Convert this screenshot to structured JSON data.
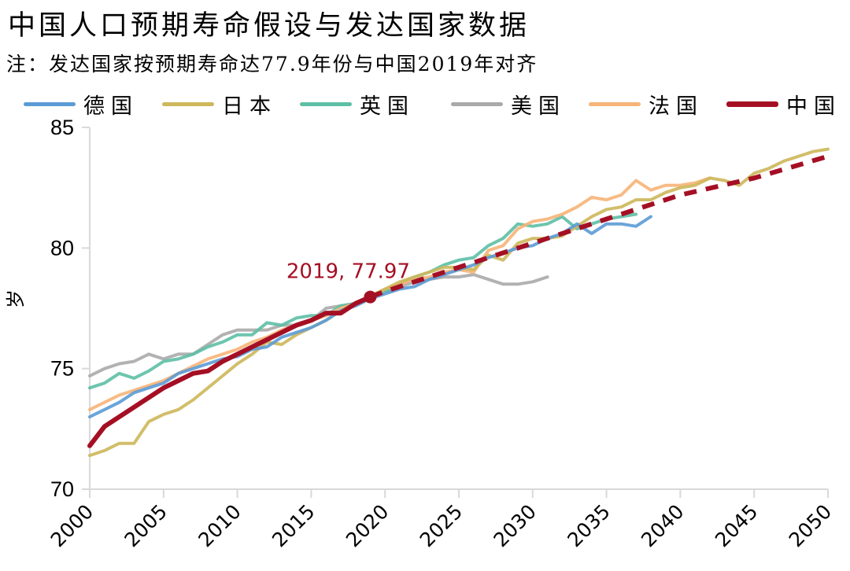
{
  "chart_data": {
    "type": "line",
    "title": "中国人口预期寿命假设与发达国家数据",
    "subtitle": "注：发达国家按预期寿命达77.9年份与中国2019年对齐",
    "xlabel": "",
    "ylabel": "岁",
    "xlim": [
      2000,
      2050
    ],
    "ylim": [
      70,
      85
    ],
    "xticks": [
      "2000",
      "2005",
      "2010",
      "2015",
      "2020",
      "2025",
      "2030",
      "2035",
      "2040",
      "2045",
      "2050"
    ],
    "yticks": [
      "70",
      "75",
      "80",
      "85"
    ],
    "grid": false,
    "legend_position": "top",
    "annotation": {
      "label": "2019, 77.97",
      "x": 2019,
      "y": 77.97
    },
    "series": [
      {
        "name": "德国",
        "color": "#5B9BD5",
        "style": "solid",
        "x": [
          2000,
          2001,
          2002,
          2003,
          2004,
          2005,
          2006,
          2007,
          2008,
          2009,
          2010,
          2011,
          2012,
          2013,
          2014,
          2015,
          2016,
          2017,
          2018,
          2019,
          2020,
          2021,
          2022,
          2023,
          2024,
          2025,
          2026,
          2027,
          2028,
          2029,
          2030,
          2031,
          2032,
          2033,
          2034,
          2035,
          2036,
          2037,
          2038
        ],
        "y": [
          73.0,
          73.3,
          73.6,
          74.0,
          74.2,
          74.4,
          74.8,
          75.0,
          75.2,
          75.4,
          75.5,
          75.8,
          75.9,
          76.3,
          76.5,
          76.7,
          77.0,
          77.4,
          77.6,
          77.9,
          78.1,
          78.3,
          78.4,
          78.7,
          78.9,
          79.1,
          79.3,
          79.6,
          79.8,
          80.0,
          80.1,
          80.4,
          80.6,
          81.0,
          80.6,
          81.0,
          81.0,
          80.9,
          81.3
        ]
      },
      {
        "name": "日本",
        "color": "#CDB75A",
        "style": "solid",
        "x": [
          2000,
          2001,
          2002,
          2003,
          2004,
          2005,
          2006,
          2007,
          2008,
          2009,
          2010,
          2011,
          2012,
          2013,
          2014,
          2015,
          2016,
          2017,
          2018,
          2019,
          2020,
          2021,
          2022,
          2023,
          2024,
          2025,
          2026,
          2027,
          2028,
          2029,
          2030,
          2031,
          2032,
          2033,
          2034,
          2035,
          2036,
          2037,
          2038,
          2039,
          2040,
          2041,
          2042,
          2043,
          2044,
          2045,
          2046,
          2047,
          2048,
          2049,
          2050
        ],
        "y": [
          71.4,
          71.6,
          71.9,
          71.9,
          72.8,
          73.1,
          73.3,
          73.7,
          74.2,
          74.7,
          75.2,
          75.6,
          76.1,
          76.0,
          76.4,
          76.7,
          77.0,
          77.4,
          77.7,
          78.0,
          78.3,
          78.6,
          78.8,
          79.0,
          79.2,
          79.2,
          79.1,
          79.7,
          79.5,
          80.2,
          80.4,
          80.4,
          80.5,
          80.9,
          81.3,
          81.6,
          81.7,
          82.0,
          82.0,
          82.3,
          82.5,
          82.6,
          82.9,
          82.8,
          82.6,
          83.1,
          83.3,
          83.6,
          83.8,
          84.0,
          84.1
        ]
      },
      {
        "name": "英国",
        "color": "#5DBFA5",
        "style": "solid",
        "x": [
          2000,
          2001,
          2002,
          2003,
          2004,
          2005,
          2006,
          2007,
          2008,
          2009,
          2010,
          2011,
          2012,
          2013,
          2014,
          2015,
          2016,
          2017,
          2018,
          2019,
          2020,
          2021,
          2022,
          2023,
          2024,
          2025,
          2026,
          2027,
          2028,
          2029,
          2030,
          2031,
          2032,
          2033,
          2034,
          2035,
          2036,
          2037
        ],
        "y": [
          74.2,
          74.4,
          74.8,
          74.6,
          74.9,
          75.3,
          75.4,
          75.6,
          75.9,
          76.1,
          76.4,
          76.4,
          76.9,
          76.8,
          77.1,
          77.2,
          77.2,
          77.6,
          77.7,
          77.9,
          78.2,
          78.5,
          78.8,
          79.0,
          79.3,
          79.5,
          79.6,
          80.1,
          80.4,
          81.0,
          80.9,
          81.0,
          81.3,
          80.8,
          81.0,
          81.2,
          81.3,
          81.4
        ]
      },
      {
        "name": "美国",
        "color": "#AAAAAA",
        "style": "solid",
        "x": [
          2000,
          2001,
          2002,
          2003,
          2004,
          2005,
          2006,
          2007,
          2008,
          2009,
          2010,
          2011,
          2012,
          2013,
          2014,
          2015,
          2016,
          2017,
          2018,
          2019,
          2020,
          2021,
          2022,
          2023,
          2024,
          2025,
          2026,
          2027,
          2028,
          2029,
          2030,
          2031
        ],
        "y": [
          74.7,
          75.0,
          75.2,
          75.3,
          75.6,
          75.4,
          75.6,
          75.6,
          76.0,
          76.4,
          76.6,
          76.6,
          76.6,
          76.8,
          76.8,
          77.0,
          77.5,
          77.6,
          77.7,
          77.9,
          78.2,
          78.4,
          78.6,
          78.7,
          78.8,
          78.8,
          78.9,
          78.7,
          78.5,
          78.5,
          78.6,
          78.8
        ]
      },
      {
        "name": "法国",
        "color": "#F6B478",
        "style": "solid",
        "x": [
          2000,
          2001,
          2002,
          2003,
          2004,
          2005,
          2006,
          2007,
          2008,
          2009,
          2010,
          2011,
          2012,
          2013,
          2014,
          2015,
          2016,
          2017,
          2018,
          2019,
          2020,
          2021,
          2022,
          2023,
          2024,
          2025,
          2026,
          2027,
          2028,
          2029,
          2030,
          2031,
          2032,
          2033,
          2034,
          2035,
          2036,
          2037,
          2038,
          2039,
          2040,
          2041,
          2042
        ],
        "y": [
          73.3,
          73.6,
          73.9,
          74.1,
          74.3,
          74.5,
          74.8,
          75.1,
          75.4,
          75.6,
          75.8,
          76.1,
          76.3,
          76.6,
          76.8,
          77.0,
          77.2,
          77.5,
          77.7,
          78.0,
          78.3,
          78.5,
          78.7,
          78.8,
          79.0,
          79.1,
          79.0,
          79.9,
          80.1,
          80.8,
          81.1,
          81.2,
          81.4,
          81.7,
          82.1,
          82.0,
          82.2,
          82.8,
          82.4,
          82.6,
          82.6,
          82.7,
          82.9
        ]
      },
      {
        "name": "中国",
        "color": "#A50F24",
        "style": "solid",
        "x": [
          2000,
          2001,
          2002,
          2003,
          2004,
          2005,
          2006,
          2007,
          2008,
          2009,
          2010,
          2011,
          2012,
          2013,
          2014,
          2015,
          2016,
          2017,
          2018,
          2019
        ],
        "y": [
          71.8,
          72.6,
          73.0,
          73.4,
          73.8,
          74.2,
          74.5,
          74.8,
          74.9,
          75.3,
          75.6,
          75.9,
          76.2,
          76.5,
          76.8,
          77.0,
          77.3,
          77.3,
          77.7,
          77.97
        ]
      },
      {
        "name": "中国(预测)",
        "color": "#A50F24",
        "style": "dashed",
        "legend": false,
        "x": [
          2019,
          2020,
          2025,
          2030,
          2035,
          2040,
          2045,
          2050
        ],
        "y": [
          77.97,
          78.2,
          79.2,
          80.2,
          81.2,
          82.2,
          82.9,
          83.8
        ]
      }
    ]
  }
}
